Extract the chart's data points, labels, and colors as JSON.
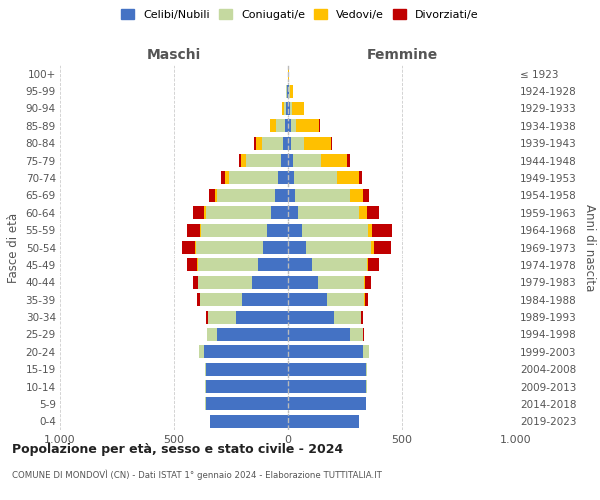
{
  "age_groups": [
    "0-4",
    "5-9",
    "10-14",
    "15-19",
    "20-24",
    "25-29",
    "30-34",
    "35-39",
    "40-44",
    "45-49",
    "50-54",
    "55-59",
    "60-64",
    "65-69",
    "70-74",
    "75-79",
    "80-84",
    "85-89",
    "90-94",
    "95-99",
    "100+"
  ],
  "birth_years": [
    "2019-2023",
    "2014-2018",
    "2009-2013",
    "2004-2008",
    "1999-2003",
    "1994-1998",
    "1989-1993",
    "1984-1988",
    "1979-1983",
    "1974-1978",
    "1969-1973",
    "1964-1968",
    "1959-1963",
    "1954-1958",
    "1949-1953",
    "1944-1948",
    "1939-1943",
    "1934-1938",
    "1929-1933",
    "1924-1928",
    "≤ 1923"
  ],
  "colors": {
    "celibi": "#4472c4",
    "coniugati": "#c5d9a0",
    "vedovi": "#ffc000",
    "divorziati": "#c00000"
  },
  "males": {
    "celibi": [
      340,
      360,
      360,
      360,
      370,
      310,
      230,
      200,
      160,
      130,
      110,
      90,
      75,
      55,
      45,
      30,
      20,
      12,
      8,
      5,
      2
    ],
    "coniugati": [
      2,
      3,
      5,
      5,
      20,
      45,
      120,
      185,
      235,
      265,
      295,
      290,
      285,
      255,
      215,
      155,
      95,
      40,
      10,
      2,
      0
    ],
    "vedovi": [
      0,
      0,
      0,
      0,
      0,
      0,
      0,
      1,
      1,
      2,
      4,
      5,
      8,
      12,
      15,
      20,
      25,
      25,
      10,
      2,
      0
    ],
    "divorziati": [
      0,
      0,
      0,
      0,
      0,
      2,
      8,
      15,
      20,
      45,
      55,
      60,
      50,
      25,
      20,
      12,
      8,
      3,
      0,
      0,
      0
    ]
  },
  "females": {
    "nubili": [
      310,
      340,
      340,
      340,
      330,
      270,
      200,
      170,
      130,
      105,
      80,
      60,
      45,
      30,
      25,
      20,
      15,
      12,
      10,
      5,
      2
    ],
    "coniugate": [
      2,
      3,
      5,
      5,
      25,
      60,
      120,
      165,
      205,
      240,
      285,
      290,
      265,
      240,
      190,
      125,
      55,
      25,
      6,
      2,
      0
    ],
    "vedove": [
      0,
      0,
      0,
      0,
      0,
      0,
      1,
      2,
      3,
      5,
      10,
      18,
      35,
      60,
      95,
      115,
      120,
      100,
      55,
      16,
      2
    ],
    "divorziate": [
      0,
      0,
      0,
      0,
      1,
      3,
      8,
      15,
      25,
      50,
      75,
      90,
      55,
      25,
      15,
      10,
      5,
      3,
      1,
      0,
      0
    ]
  },
  "title_main": "Popolazione per età, sesso e stato civile - 2024",
  "title_sub": "COMUNE DI MONDOVÌ (CN) - Dati ISTAT 1° gennaio 2024 - Elaborazione TUTTITALIA.IT",
  "xlabel_left": "Maschi",
  "xlabel_right": "Femmine",
  "ylabel_left": "Fasce di età",
  "ylabel_right": "Anni di nascita",
  "xlim": 1000,
  "legend_labels": [
    "Celibi/Nubili",
    "Coniugati/e",
    "Vedovi/e",
    "Divorziati/e"
  ],
  "background_color": "#ffffff",
  "bar_height": 0.75
}
